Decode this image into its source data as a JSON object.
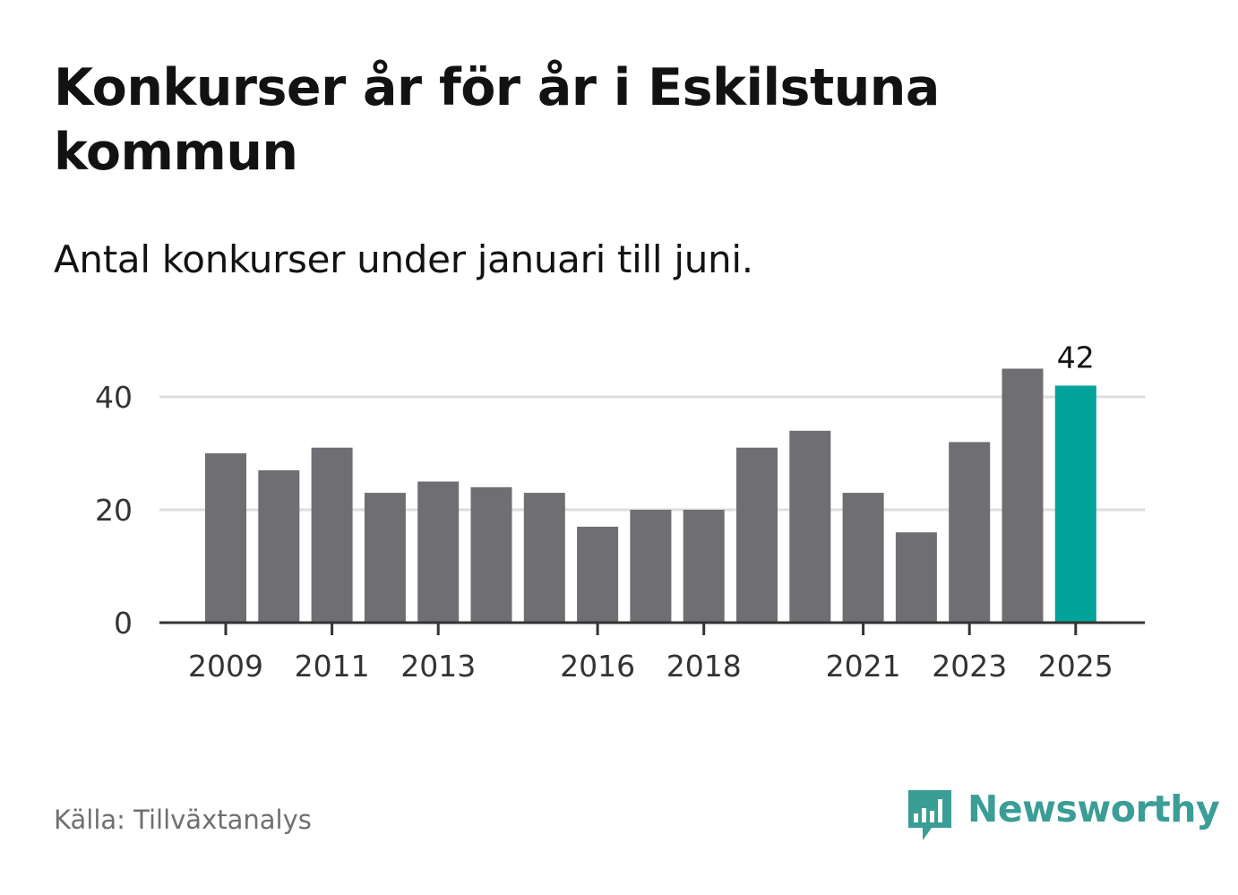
{
  "title": "Konkurser år för år i Eskilstuna kommun",
  "subtitle": "Antal konkurser under januari till juni.",
  "source": "Källa: Tillväxtanalys",
  "brand": {
    "name": "Newsworthy",
    "color": "#3a9d96",
    "icon": "bar-chart-speech-bubble-icon"
  },
  "colors": {
    "bar": "#6f6e73",
    "highlight": "#00a39a",
    "grid": "#dddddd",
    "axis": "#333333"
  },
  "chart_data": {
    "type": "bar",
    "x": [
      2009,
      2010,
      2011,
      2012,
      2013,
      2014,
      2015,
      2016,
      2017,
      2018,
      2019,
      2020,
      2021,
      2022,
      2023,
      2024,
      2025
    ],
    "values": [
      30,
      27,
      31,
      23,
      25,
      24,
      23,
      17,
      20,
      20,
      31,
      34,
      23,
      16,
      32,
      45,
      42
    ],
    "xticks": [
      "2009",
      "2011",
      "2013",
      "2016",
      "2018",
      "2021",
      "2023",
      "2025"
    ],
    "yticks": [
      0,
      20,
      40
    ],
    "ylim": [
      0,
      45
    ],
    "highlight": 2025,
    "data_labels": [
      {
        "x": 2025,
        "text": "42"
      }
    ],
    "grid": true
  }
}
